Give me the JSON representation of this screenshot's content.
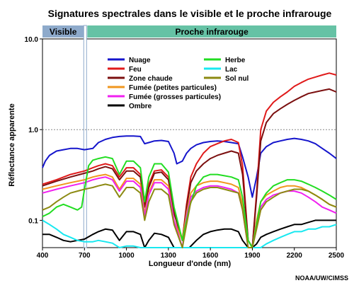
{
  "chart_data": {
    "type": "line",
    "title": "Signatures spectrales dans le visible et le proche infrarouge",
    "xlabel": "Longueur d'onde (nm)",
    "ylabel": "Réflectance apparente",
    "credit": "NOAA/UW/CIMSS",
    "y_scale": "log",
    "xlim": [
      400,
      2500
    ],
    "ylim": [
      0.05,
      10
    ],
    "x_ticks": [
      "400",
      "700",
      "1000",
      "1300",
      "1600",
      "1900",
      "2200",
      "2500"
    ],
    "y_ticks": [
      "0.1",
      "1.0",
      "10.0"
    ],
    "bands": [
      {
        "label": "Visible",
        "x_range": [
          400,
          700
        ],
        "color": "#8eaacb"
      },
      {
        "label": "Proche infrarouge",
        "x_range": [
          700,
          2500
        ],
        "color": "#66c2a5"
      }
    ],
    "reference_line_y": 1.0,
    "series": [
      {
        "name": "Nuage",
        "color": "#1515cc",
        "x": [
          400,
          420,
          450,
          500,
          550,
          600,
          650,
          700,
          760,
          800,
          850,
          900,
          950,
          1000,
          1050,
          1100,
          1130,
          1160,
          1200,
          1250,
          1300,
          1340,
          1360,
          1400,
          1430,
          1460,
          1500,
          1550,
          1600,
          1650,
          1700,
          1750,
          1800,
          1830,
          1870,
          1900,
          1930,
          1960,
          2000,
          2050,
          2100,
          2150,
          2200,
          2250,
          2300,
          2350,
          2400,
          2450,
          2500
        ],
        "y": [
          0.38,
          0.45,
          0.52,
          0.58,
          0.6,
          0.62,
          0.62,
          0.6,
          0.62,
          0.72,
          0.78,
          0.82,
          0.84,
          0.85,
          0.85,
          0.84,
          0.7,
          0.72,
          0.75,
          0.76,
          0.74,
          0.55,
          0.42,
          0.45,
          0.55,
          0.62,
          0.68,
          0.72,
          0.74,
          0.75,
          0.74,
          0.72,
          0.7,
          0.5,
          0.3,
          0.18,
          0.3,
          0.55,
          0.65,
          0.72,
          0.75,
          0.78,
          0.8,
          0.78,
          0.75,
          0.7,
          0.62,
          0.55,
          0.48
        ]
      },
      {
        "name": "Feu",
        "color": "#e01a1a",
        "x": [
          400,
          500,
          600,
          700,
          760,
          800,
          850,
          900,
          950,
          1000,
          1050,
          1100,
          1130,
          1160,
          1200,
          1250,
          1300,
          1340,
          1400,
          1430,
          1460,
          1500,
          1550,
          1600,
          1650,
          1700,
          1750,
          1800,
          1830,
          1870,
          1900,
          1930,
          1960,
          2000,
          2050,
          2100,
          2150,
          2200,
          2250,
          2300,
          2350,
          2400,
          2450,
          2500
        ],
        "y": [
          0.25,
          0.28,
          0.32,
          0.35,
          0.38,
          0.4,
          0.42,
          0.4,
          0.3,
          0.38,
          0.38,
          0.32,
          0.15,
          0.25,
          0.35,
          0.36,
          0.3,
          0.13,
          0.06,
          0.15,
          0.3,
          0.42,
          0.55,
          0.65,
          0.7,
          0.75,
          0.78,
          0.72,
          0.4,
          0.06,
          0.05,
          0.2,
          1.0,
          1.6,
          2.0,
          2.3,
          2.6,
          3.0,
          3.3,
          3.6,
          3.8,
          4.0,
          4.2,
          4.0
        ]
      },
      {
        "name": "Zone chaude",
        "color": "#7b0f0f",
        "x": [
          400,
          500,
          600,
          700,
          760,
          800,
          850,
          900,
          950,
          1000,
          1050,
          1100,
          1130,
          1160,
          1200,
          1250,
          1300,
          1340,
          1400,
          1430,
          1460,
          1500,
          1550,
          1600,
          1650,
          1700,
          1750,
          1800,
          1830,
          1870,
          1900,
          1930,
          1960,
          2000,
          2050,
          2100,
          2150,
          2200,
          2250,
          2300,
          2350,
          2400,
          2450,
          2500
        ],
        "y": [
          0.24,
          0.27,
          0.3,
          0.33,
          0.35,
          0.37,
          0.39,
          0.37,
          0.28,
          0.35,
          0.35,
          0.3,
          0.14,
          0.23,
          0.33,
          0.34,
          0.28,
          0.12,
          0.06,
          0.14,
          0.26,
          0.35,
          0.42,
          0.48,
          0.52,
          0.55,
          0.58,
          0.55,
          0.32,
          0.06,
          0.05,
          0.18,
          0.75,
          1.2,
          1.5,
          1.7,
          1.9,
          2.1,
          2.3,
          2.5,
          2.6,
          2.7,
          2.8,
          2.6
        ]
      },
      {
        "name": "Fumée (petites particules)",
        "color": "#f0961e",
        "x": [
          400,
          500,
          600,
          700,
          760,
          800,
          850,
          900,
          950,
          1000,
          1050,
          1100,
          1130,
          1160,
          1200,
          1250,
          1300,
          1340,
          1400,
          1430,
          1460,
          1500,
          1550,
          1600,
          1650,
          1700,
          1750,
          1800,
          1830,
          1870,
          1900,
          1930,
          1960,
          2000,
          2050,
          2100,
          2150,
          2200,
          2250,
          2300,
          2350,
          2400,
          2450,
          2500
        ],
        "y": [
          0.22,
          0.24,
          0.26,
          0.28,
          0.3,
          0.31,
          0.32,
          0.3,
          0.22,
          0.29,
          0.29,
          0.25,
          0.12,
          0.2,
          0.28,
          0.28,
          0.24,
          0.1,
          0.06,
          0.12,
          0.2,
          0.24,
          0.26,
          0.27,
          0.27,
          0.26,
          0.25,
          0.23,
          0.15,
          0.06,
          0.05,
          0.1,
          0.16,
          0.19,
          0.21,
          0.23,
          0.24,
          0.24,
          0.23,
          0.21,
          0.19,
          0.17,
          0.15,
          0.14
        ]
      },
      {
        "name": "Fumée (grosses particules)",
        "color": "#f020f0",
        "x": [
          400,
          500,
          600,
          700,
          760,
          800,
          850,
          900,
          950,
          1000,
          1050,
          1100,
          1130,
          1160,
          1200,
          1250,
          1300,
          1340,
          1400,
          1430,
          1460,
          1500,
          1550,
          1600,
          1650,
          1700,
          1750,
          1800,
          1830,
          1870,
          1900,
          1930,
          1960,
          2000,
          2050,
          2100,
          2150,
          2200,
          2250,
          2300,
          2350,
          2400,
          2450,
          2500
        ],
        "y": [
          0.2,
          0.22,
          0.24,
          0.26,
          0.28,
          0.29,
          0.3,
          0.28,
          0.21,
          0.27,
          0.27,
          0.23,
          0.11,
          0.19,
          0.26,
          0.26,
          0.22,
          0.1,
          0.05,
          0.11,
          0.18,
          0.21,
          0.23,
          0.24,
          0.24,
          0.23,
          0.22,
          0.2,
          0.13,
          0.05,
          0.05,
          0.09,
          0.14,
          0.17,
          0.19,
          0.2,
          0.21,
          0.21,
          0.2,
          0.18,
          0.16,
          0.14,
          0.13,
          0.12
        ]
      },
      {
        "name": "Ombre",
        "color": "#000000",
        "x": [
          400,
          450,
          500,
          550,
          600,
          650,
          700,
          760,
          800,
          850,
          900,
          950,
          1000,
          1050,
          1100,
          1130,
          1160,
          1200,
          1250,
          1300,
          1340,
          1400,
          1450,
          1500,
          1550,
          1600,
          1650,
          1700,
          1750,
          1800,
          1830,
          1870,
          1900,
          1930,
          1960,
          2000,
          2050,
          2100,
          2150,
          2200,
          2250,
          2300,
          2350,
          2400,
          2450,
          2500
        ],
        "y": [
          0.07,
          0.07,
          0.065,
          0.06,
          0.058,
          0.06,
          0.062,
          0.07,
          0.075,
          0.08,
          0.078,
          0.06,
          0.075,
          0.075,
          0.07,
          0.05,
          0.06,
          0.072,
          0.07,
          0.065,
          0.05,
          0.05,
          0.05,
          0.06,
          0.07,
          0.075,
          0.078,
          0.08,
          0.08,
          0.075,
          0.06,
          0.05,
          0.05,
          0.055,
          0.065,
          0.07,
          0.075,
          0.08,
          0.085,
          0.09,
          0.09,
          0.095,
          0.1,
          0.1,
          0.1,
          0.1
        ]
      },
      {
        "name": "Herbe",
        "color": "#22dd22",
        "x": [
          400,
          450,
          500,
          550,
          600,
          650,
          680,
          700,
          730,
          760,
          800,
          850,
          900,
          950,
          1000,
          1050,
          1100,
          1130,
          1160,
          1200,
          1250,
          1300,
          1340,
          1400,
          1450,
          1500,
          1550,
          1600,
          1650,
          1700,
          1750,
          1800,
          1830,
          1870,
          1900,
          1930,
          1960,
          2000,
          2050,
          2100,
          2150,
          2200,
          2250,
          2300,
          2350,
          2400,
          2450,
          2500
        ],
        "y": [
          0.11,
          0.12,
          0.14,
          0.15,
          0.14,
          0.13,
          0.14,
          0.22,
          0.4,
          0.46,
          0.48,
          0.5,
          0.48,
          0.32,
          0.45,
          0.45,
          0.38,
          0.16,
          0.3,
          0.42,
          0.42,
          0.34,
          0.14,
          0.06,
          0.14,
          0.24,
          0.3,
          0.32,
          0.32,
          0.31,
          0.3,
          0.28,
          0.18,
          0.06,
          0.05,
          0.09,
          0.16,
          0.2,
          0.24,
          0.26,
          0.28,
          0.28,
          0.27,
          0.25,
          0.23,
          0.21,
          0.19,
          0.17
        ]
      },
      {
        "name": "Lac",
        "color": "#18e8f0",
        "x": [
          400,
          450,
          500,
          550,
          600,
          650,
          700,
          760,
          800,
          850,
          900,
          950,
          1000,
          1050,
          1100,
          1130,
          1160,
          1200,
          1250,
          1300,
          1340,
          1400,
          1450,
          1500,
          1550,
          1600,
          1650,
          1700,
          1750,
          1800,
          1830,
          1870,
          1900,
          1930,
          1960,
          2000,
          2050,
          2100,
          2150,
          2200,
          2250,
          2300,
          2350,
          2400,
          2450,
          2500
        ],
        "y": [
          0.1,
          0.09,
          0.08,
          0.07,
          0.065,
          0.06,
          0.058,
          0.058,
          0.06,
          0.058,
          0.056,
          0.05,
          0.052,
          0.052,
          0.05,
          0.045,
          0.046,
          0.05,
          0.05,
          0.048,
          0.045,
          0.045,
          0.045,
          0.045,
          0.046,
          0.048,
          0.05,
          0.05,
          0.05,
          0.048,
          0.045,
          0.045,
          0.045,
          0.046,
          0.05,
          0.055,
          0.06,
          0.065,
          0.07,
          0.075,
          0.075,
          0.08,
          0.08,
          0.085,
          0.085,
          0.09
        ]
      },
      {
        "name": "Sol nul",
        "color": "#8c8a12",
        "x": [
          400,
          450,
          500,
          550,
          600,
          650,
          700,
          760,
          800,
          850,
          900,
          950,
          1000,
          1050,
          1100,
          1130,
          1160,
          1200,
          1250,
          1300,
          1340,
          1400,
          1430,
          1460,
          1500,
          1550,
          1600,
          1650,
          1700,
          1750,
          1800,
          1830,
          1870,
          1900,
          1930,
          1960,
          2000,
          2050,
          2100,
          2150,
          2200,
          2250,
          2300,
          2350,
          2400,
          2450,
          2500
        ],
        "y": [
          0.13,
          0.14,
          0.16,
          0.18,
          0.2,
          0.21,
          0.22,
          0.23,
          0.24,
          0.25,
          0.24,
          0.18,
          0.23,
          0.23,
          0.2,
          0.1,
          0.16,
          0.22,
          0.22,
          0.19,
          0.09,
          0.05,
          0.09,
          0.16,
          0.2,
          0.22,
          0.23,
          0.23,
          0.22,
          0.21,
          0.2,
          0.13,
          0.05,
          0.05,
          0.08,
          0.13,
          0.16,
          0.18,
          0.2,
          0.21,
          0.22,
          0.22,
          0.21,
          0.19,
          0.17,
          0.15,
          0.14
        ]
      }
    ]
  }
}
